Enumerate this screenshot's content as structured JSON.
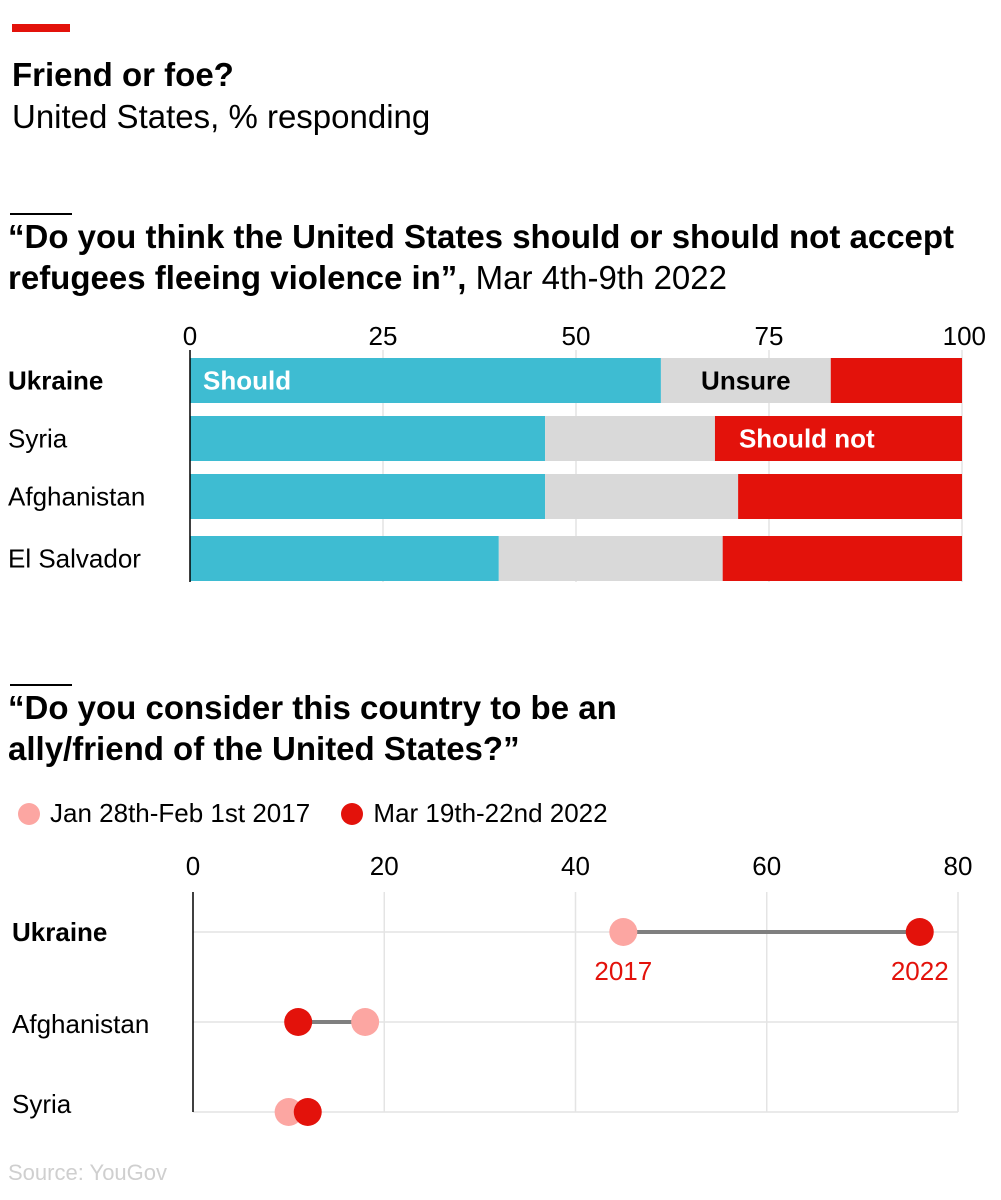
{
  "header": {
    "title": "Friend or foe?",
    "subtitle": "United States, % responding"
  },
  "source": "Source: YouGov",
  "colors": {
    "accent": "#e3120b",
    "should": "#3ebcd2",
    "unsure": "#d9d9d9",
    "should_not": "#e3120b",
    "y2017": "#fca6a2",
    "y2022": "#e3120b"
  },
  "chart_data": [
    {
      "type": "bar",
      "orientation": "horizontal-stacked",
      "title": "“Do you think the United States should or should not accept refugees fleeing violence in”,",
      "subtitle": "Mar 4th-9th 2022",
      "categories": [
        "Ukraine",
        "Syria",
        "Afghanistan",
        "El Salvador"
      ],
      "series": [
        {
          "name": "Should",
          "values": [
            61,
            46,
            46,
            40
          ]
        },
        {
          "name": "Unsure",
          "values": [
            22,
            22,
            25,
            29
          ]
        },
        {
          "name": "Should not",
          "values": [
            17,
            32,
            29,
            31
          ]
        }
      ],
      "xlim": [
        0,
        100
      ],
      "xticks": [
        0,
        25,
        50,
        75,
        100
      ],
      "grid": true
    },
    {
      "type": "scatter",
      "subtype": "dumbbell",
      "title": "“Do you consider this country to be an ally/friend of the United States?”",
      "categories": [
        "Ukraine",
        "Afghanistan",
        "Syria"
      ],
      "series": [
        {
          "name": "Jan 28th-Feb 1st 2017",
          "values": [
            45,
            18,
            10
          ]
        },
        {
          "name": "Mar 19th-22nd 2022",
          "values": [
            76,
            11,
            12
          ]
        }
      ],
      "annotations": {
        "start_label": "2017",
        "end_label": "2022"
      },
      "xlim": [
        0,
        80
      ],
      "xticks": [
        0,
        20,
        40,
        60,
        80
      ],
      "grid": true,
      "legend": "top-left"
    }
  ]
}
